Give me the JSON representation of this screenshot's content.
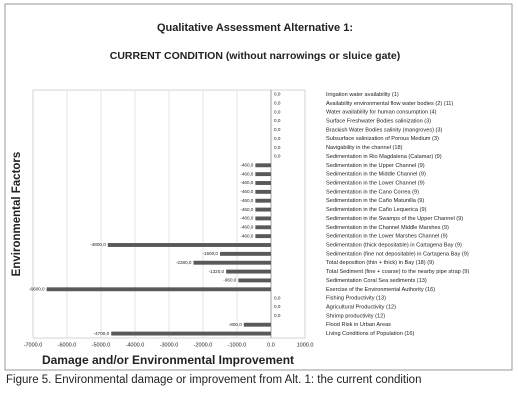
{
  "chart_data": {
    "type": "barh",
    "title": "Qualitative Assessment Alternative 1:",
    "subtitle": "CURRENT CONDITION (without narrowings or sluice gate)",
    "y_label": "Environmental Factors",
    "x_label": "Damage and/or Environmental Improvement",
    "categories": [
      "Irrigation water availability (1)",
      "Availability environmental flow water bodies (2) (11)",
      "Water availability for human consumption (4)",
      "Surface Freshwater Bodies salinization (3)",
      "Brackish Water Bodies salinity (mangroves) (3)",
      "Subsurface salinization of Porous Medium (3)",
      "Navigability in the channel (18)",
      "Sedimentation in Rio Magdalena (Calamar) (9)",
      "Sedimentation in the Upper Channel (9)",
      "Sedimentation in the Middle Channel (9)",
      "Sedimentation in the Lower Channel (9)",
      "Sedimentation in the Cano Correa (9)",
      "Sedimentation in the Caño Matunilla (9)",
      "Sedimentation in the Caño Lequerica (9)",
      "Sedimentation in the Swamps of the Upper Channel (9)",
      "Sedimentation in the Channel Middle Marshes (9)",
      "Sedimentation in the Lower Marshes Channel (9)",
      "Sedimentation (thick depositable) in Cartagena Bay (9)",
      "Sedimentation (fine not depositable) in Cartagena Bay (9)",
      "Total deposition (thin + thick) in Bay (18) (9)",
      "Total Sediment (fine + coarse) to the nearby pipe strap (9)",
      "Sedimentation Coral Sea sediments (13)",
      "Exercise of the Environmental Authority (16)",
      "Fishing Productivity (13)",
      "Agricultural Productivity (12)",
      "Shrimp productivity (12)",
      "Flood Risk in Urban Areas",
      "Living Conditions of Population (16)"
    ],
    "values": [
      0,
      0,
      0,
      0,
      0,
      0,
      0,
      0,
      -460,
      -460,
      -460,
      -460,
      -460,
      -460,
      -460,
      -460,
      -460,
      -4800,
      -1500,
      -2280,
      -1320,
      -960,
      -6600,
      0,
      0,
      0,
      -800,
      -4700
    ],
    "value_labels": [
      "0,0",
      "0,0",
      "0,0",
      "0,0",
      "0,0",
      "0,0",
      "0,0",
      "0,0",
      "-460,0",
      "-460,0",
      "-460,0",
      "-460,0",
      "-460,0",
      "-460,0",
      "-460,0",
      "-460,0",
      "-460,0",
      "-4800,0",
      "-1500,0",
      "-2280,0",
      "-1320,0",
      "-960,0",
      "-6600,0",
      "0,0",
      "0,0",
      "0,0",
      "-800,0",
      "-4700,0"
    ],
    "color": "#595959",
    "xlim": [
      -7000,
      1000
    ],
    "xticks": [
      {
        "value": -7000,
        "label": "-7000.0"
      },
      {
        "value": -6000,
        "label": "-6000.0"
      },
      {
        "value": -5000,
        "label": "-5000.0"
      },
      {
        "value": -4000,
        "label": "-4000.0"
      },
      {
        "value": -3000,
        "label": "-3000.0"
      },
      {
        "value": -2000,
        "label": "-2000.0"
      },
      {
        "value": -1000,
        "label": "-1000.0"
      },
      {
        "value": 0,
        "label": "0.0"
      },
      {
        "value": 1000,
        "label": "1000.0"
      }
    ],
    "grid": true
  },
  "caption": "Figure 5. Environmental damage or improvement from Alt. 1: the current condition"
}
